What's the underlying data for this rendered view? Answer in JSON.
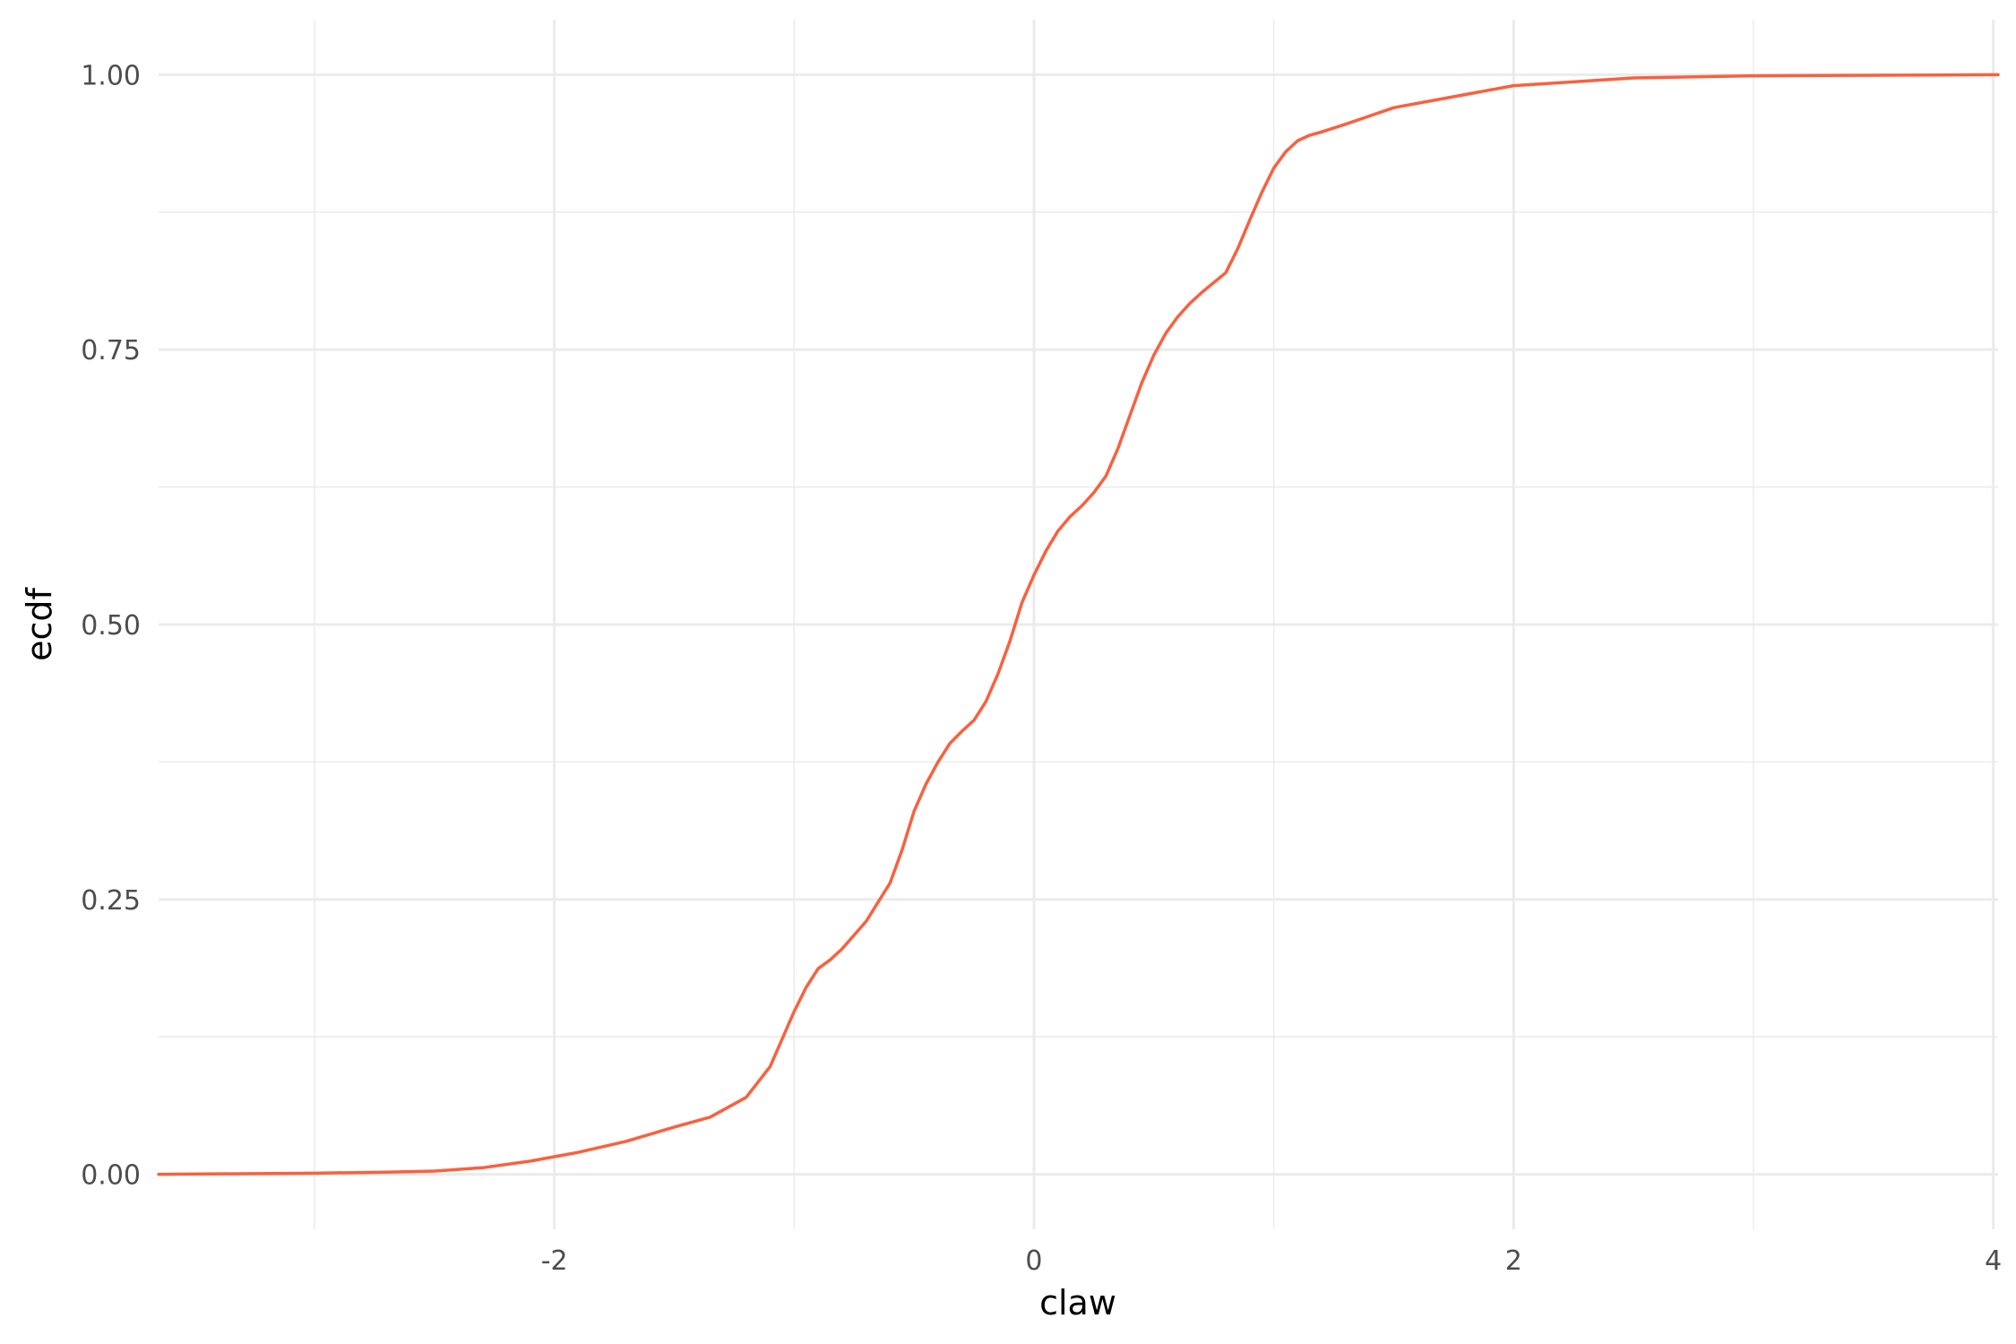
{
  "chart_data": {
    "type": "line",
    "title": "",
    "xlabel": "claw",
    "ylabel": "ecdf",
    "xlim": [
      -3.65,
      4.02
    ],
    "ylim": [
      -0.05,
      1.05
    ],
    "x_ticks": [
      -2,
      0,
      2,
      4
    ],
    "x_tick_labels": [
      "-2",
      "0",
      "2",
      "4"
    ],
    "y_ticks": [
      0,
      0.25,
      0.5,
      0.75,
      1
    ],
    "y_tick_labels": [
      "0.00",
      "0.25",
      "0.50",
      "0.75",
      "1.00"
    ],
    "grid": true,
    "legend": "none",
    "series": [
      {
        "color": "#f8613f",
        "x": [
          -3.65,
          -3.0,
          -2.7,
          -2.5,
          -2.3,
          -2.1,
          -1.9,
          -1.7,
          -1.5,
          -1.35,
          -1.2,
          -1.1,
          -1.0,
          -0.95,
          -0.9,
          -0.85,
          -0.8,
          -0.7,
          -0.6,
          -0.55,
          -0.5,
          -0.45,
          -0.4,
          -0.35,
          -0.3,
          -0.25,
          -0.2,
          -0.15,
          -0.1,
          -0.05,
          0.0,
          0.05,
          0.1,
          0.15,
          0.2,
          0.25,
          0.3,
          0.35,
          0.4,
          0.45,
          0.5,
          0.55,
          0.6,
          0.65,
          0.7,
          0.8,
          0.85,
          0.9,
          0.95,
          1.0,
          1.05,
          1.1,
          1.15,
          1.2,
          1.3,
          1.5,
          1.75,
          2.0,
          2.5,
          3.0,
          4.02
        ],
        "y": [
          0.0,
          0.001,
          0.002,
          0.003,
          0.006,
          0.012,
          0.02,
          0.03,
          0.043,
          0.052,
          0.07,
          0.098,
          0.148,
          0.17,
          0.187,
          0.195,
          0.205,
          0.23,
          0.265,
          0.295,
          0.33,
          0.355,
          0.375,
          0.392,
          0.403,
          0.413,
          0.43,
          0.455,
          0.485,
          0.52,
          0.545,
          0.567,
          0.585,
          0.598,
          0.608,
          0.62,
          0.635,
          0.66,
          0.69,
          0.72,
          0.745,
          0.765,
          0.78,
          0.792,
          0.802,
          0.82,
          0.842,
          0.868,
          0.893,
          0.915,
          0.93,
          0.94,
          0.945,
          0.948,
          0.955,
          0.97,
          0.98,
          0.99,
          0.997,
          0.999,
          1.0
        ]
      }
    ]
  }
}
